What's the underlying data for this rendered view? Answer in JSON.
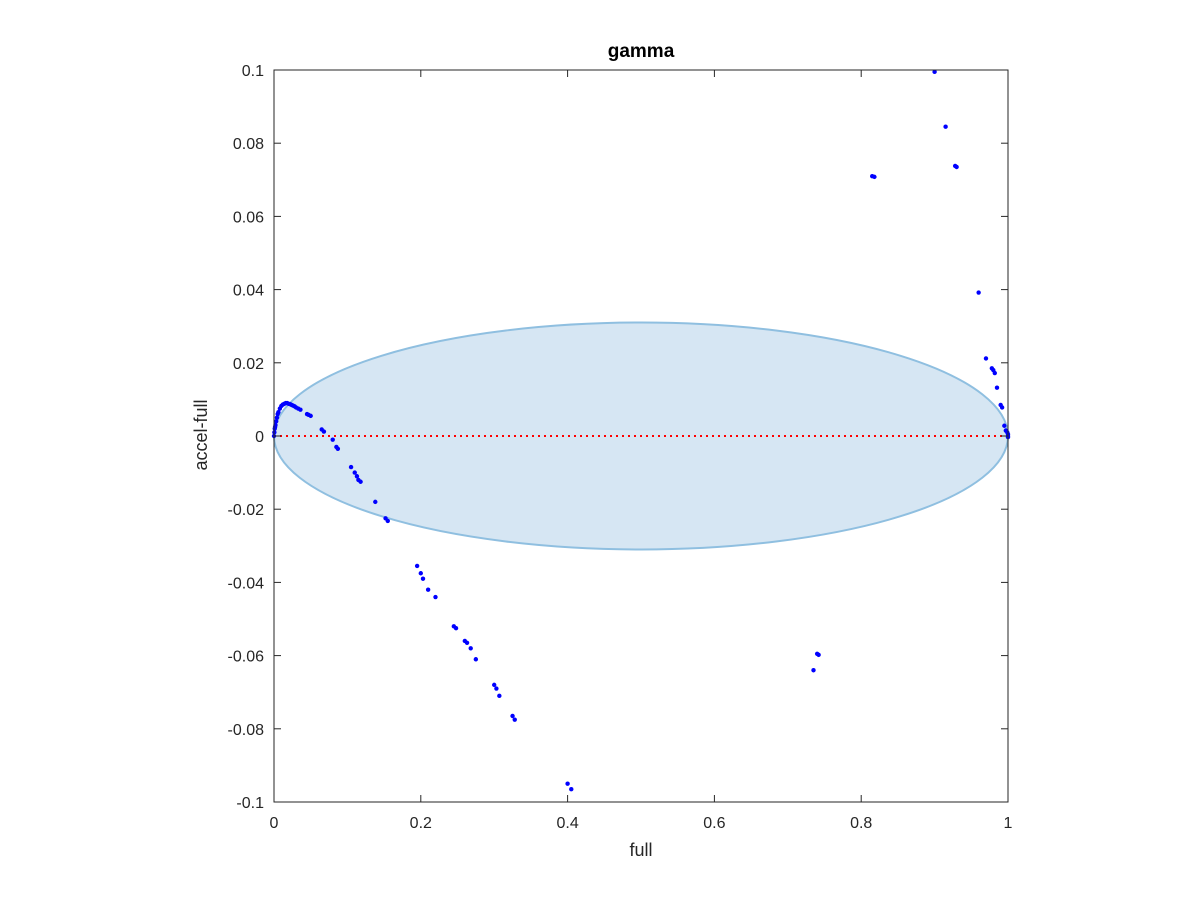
{
  "chart_data": {
    "type": "scatter",
    "title": "gamma",
    "xlabel": "full",
    "ylabel": "accel-full",
    "xlim": [
      0,
      1
    ],
    "ylim": [
      -0.1,
      0.1
    ],
    "xticks": [
      0,
      0.2,
      0.4,
      0.6,
      0.8,
      1
    ],
    "xtick_labels": [
      "0",
      "0.2",
      "0.4",
      "0.6",
      "0.8",
      "1"
    ],
    "yticks": [
      -0.1,
      -0.08,
      -0.06,
      -0.04,
      -0.02,
      0,
      0.02,
      0.04,
      0.06,
      0.08,
      0.1
    ],
    "ytick_labels": [
      "-0.1",
      "-0.08",
      "-0.06",
      "-0.04",
      "-0.02",
      "0",
      "0.02",
      "0.04",
      "0.06",
      "0.08",
      "0.1"
    ],
    "grid": false,
    "box": true,
    "reference_line": {
      "y": 0,
      "style": "dotted",
      "color": "#ff0000"
    },
    "ellipse": {
      "cx": 0.5,
      "cy": 0,
      "rx": 0.5,
      "ry": 0.031,
      "fill": "#d6e6f3",
      "stroke": "#8fbfe0"
    },
    "series": [
      {
        "marker_color": "#0000ff",
        "x": [
          0.0,
          0.0005,
          0.001,
          0.0015,
          0.002,
          0.003,
          0.004,
          0.005,
          0.006,
          0.008,
          0.01,
          0.012,
          0.014,
          0.016,
          0.018,
          0.02,
          0.022,
          0.024,
          0.026,
          0.028,
          0.03,
          0.033,
          0.036,
          0.045,
          0.047,
          0.05,
          0.065,
          0.068,
          0.08,
          0.085,
          0.087,
          0.105,
          0.11,
          0.113,
          0.115,
          0.118,
          0.138,
          0.152,
          0.155,
          0.195,
          0.2,
          0.203,
          0.21,
          0.22,
          0.245,
          0.248,
          0.26,
          0.263,
          0.268,
          0.275,
          0.3,
          0.303,
          0.307,
          0.325,
          0.328,
          0.4,
          0.405,
          0.735,
          0.74,
          0.742,
          0.815,
          0.818,
          0.9,
          0.915,
          0.928,
          0.93,
          0.96,
          0.97,
          0.978,
          0.98,
          0.982,
          0.985,
          0.99,
          0.992,
          0.995,
          0.997,
          0.999,
          1.0,
          1.0,
          1.0
        ],
        "y": [
          0.0,
          0.001,
          0.002,
          0.0025,
          0.003,
          0.004,
          0.005,
          0.006,
          0.0065,
          0.0075,
          0.0082,
          0.0086,
          0.0088,
          0.009,
          0.009,
          0.0088,
          0.0087,
          0.0085,
          0.0083,
          0.0081,
          0.0078,
          0.0075,
          0.0072,
          0.006,
          0.0058,
          0.0055,
          0.0018,
          0.0012,
          -0.001,
          -0.003,
          -0.0035,
          -0.0085,
          -0.01,
          -0.011,
          -0.012,
          -0.0125,
          -0.018,
          -0.0225,
          -0.0232,
          -0.0355,
          -0.0375,
          -0.039,
          -0.042,
          -0.044,
          -0.052,
          -0.0525,
          -0.056,
          -0.0565,
          -0.058,
          -0.061,
          -0.068,
          -0.069,
          -0.071,
          -0.0765,
          -0.0775,
          -0.095,
          -0.0965,
          -0.064,
          -0.0595,
          -0.0598,
          0.071,
          0.0708,
          0.0995,
          0.0845,
          0.0738,
          0.0735,
          0.0392,
          0.0212,
          0.0185,
          0.018,
          0.0172,
          0.0132,
          0.0085,
          0.0078,
          0.0028,
          0.0015,
          0.001,
          0.0005,
          0.0,
          -0.0003
        ]
      }
    ]
  }
}
